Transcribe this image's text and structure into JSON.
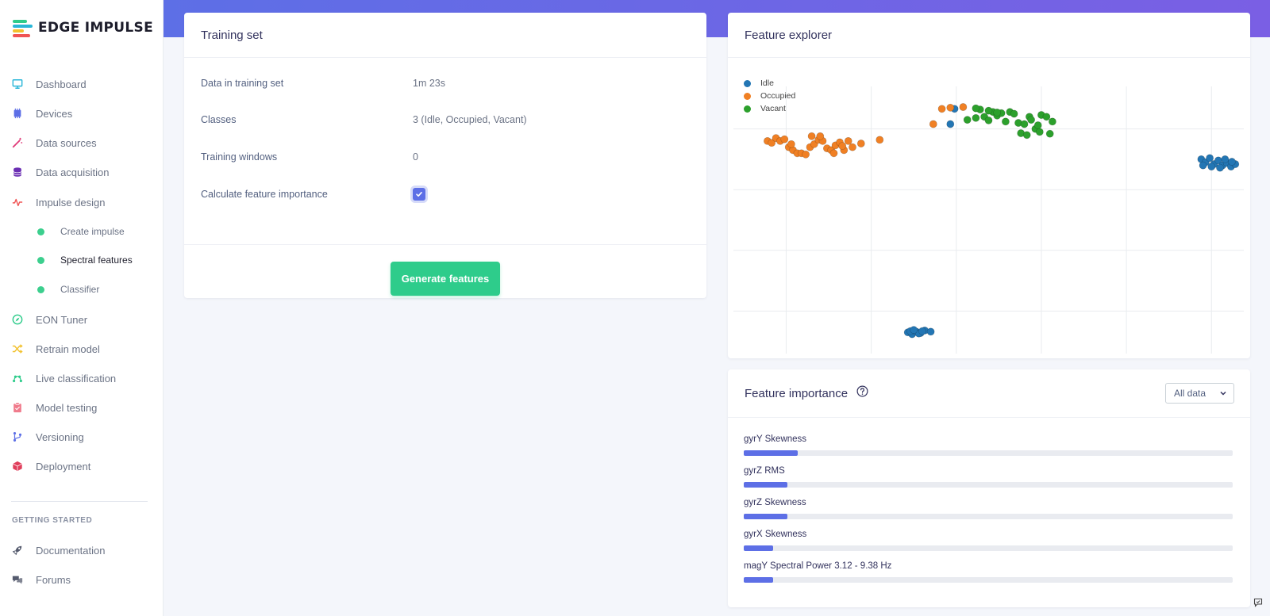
{
  "brand": {
    "name": "EDGE IMPULSE"
  },
  "sidebar": {
    "items": [
      {
        "label": "Dashboard",
        "icon": "monitor-icon",
        "color": "#29b6d8"
      },
      {
        "label": "Devices",
        "icon": "cpu-icon",
        "color": "#5d6fe6"
      },
      {
        "label": "Data sources",
        "icon": "wand-icon",
        "color": "#e03e7b"
      },
      {
        "label": "Data acquisition",
        "icon": "database-icon",
        "color": "#6b2fb3"
      },
      {
        "label": "Impulse design",
        "icon": "pulse-icon",
        "color": "#f05454"
      },
      {
        "label": "Create impulse",
        "icon": "dot-icon",
        "sub": true
      },
      {
        "label": "Spectral features",
        "icon": "dot-icon",
        "sub": true,
        "active": true
      },
      {
        "label": "Classifier",
        "icon": "dot-icon",
        "sub": true
      },
      {
        "label": "EON Tuner",
        "icon": "compass-icon",
        "color": "#2ecc8b"
      },
      {
        "label": "Retrain model",
        "icon": "shuffle-icon",
        "color": "#f2c12e"
      },
      {
        "label": "Live classification",
        "icon": "graph-icon",
        "color": "#2ecc8b"
      },
      {
        "label": "Model testing",
        "icon": "clipboard-icon",
        "color": "#f07b8c"
      },
      {
        "label": "Versioning",
        "icon": "branch-icon",
        "color": "#5d6fe6"
      },
      {
        "label": "Deployment",
        "icon": "cube-icon",
        "color": "#e03e5b"
      }
    ],
    "section_title": "GETTING STARTED",
    "getting_started": [
      {
        "label": "Documentation",
        "icon": "rocket-icon"
      },
      {
        "label": "Forums",
        "icon": "comments-icon"
      }
    ]
  },
  "training_set": {
    "title": "Training set",
    "rows": [
      {
        "label": "Data in training set",
        "value": "1m 23s"
      },
      {
        "label": "Classes",
        "value": "3 (Idle, Occupied, Vacant)"
      },
      {
        "label": "Training windows",
        "value": "0"
      },
      {
        "label": "Calculate feature importance",
        "checked": true
      }
    ],
    "button": "Generate features"
  },
  "feature_explorer": {
    "title": "Feature explorer",
    "legend": [
      {
        "name": "Idle",
        "color": "#2376b4"
      },
      {
        "name": "Occupied",
        "color": "#f08024"
      },
      {
        "name": "Vacant",
        "color": "#2ca02c"
      }
    ],
    "chart_data": {
      "type": "scatter",
      "grid": true,
      "xlim": [
        0,
        6
      ],
      "ylim": [
        0,
        4.4
      ],
      "series": [
        {
          "name": "Idle",
          "points": [
            [
              2.05,
              0.35
            ],
            [
              2.1,
              0.32
            ],
            [
              2.15,
              0.36
            ],
            [
              2.2,
              0.34
            ],
            [
              2.25,
              0.38
            ],
            [
              2.08,
              0.37
            ],
            [
              2.18,
              0.33
            ],
            [
              2.32,
              0.36
            ],
            [
              2.12,
              0.39
            ],
            [
              2.22,
              0.37
            ],
            [
              5.5,
              3.2
            ],
            [
              5.55,
              3.15
            ],
            [
              5.6,
              3.22
            ],
            [
              5.65,
              3.12
            ],
            [
              5.7,
              3.18
            ],
            [
              5.75,
              3.1
            ],
            [
              5.8,
              3.14
            ],
            [
              5.85,
              3.08
            ],
            [
              5.9,
              3.12
            ],
            [
              5.62,
              3.08
            ],
            [
              5.72,
              3.06
            ],
            [
              5.78,
              3.2
            ],
            [
              5.52,
              3.1
            ],
            [
              5.86,
              3.16
            ],
            [
              2.6,
              4.03
            ],
            [
              2.55,
              3.78
            ]
          ]
        },
        {
          "name": "Occupied",
          "points": [
            [
              0.4,
              3.5
            ],
            [
              0.45,
              3.47
            ],
            [
              0.5,
              3.55
            ],
            [
              0.55,
              3.5
            ],
            [
              0.6,
              3.53
            ],
            [
              0.65,
              3.4
            ],
            [
              0.7,
              3.35
            ],
            [
              0.75,
              3.3
            ],
            [
              0.8,
              3.3
            ],
            [
              0.85,
              3.28
            ],
            [
              0.9,
              3.4
            ],
            [
              0.95,
              3.45
            ],
            [
              1.0,
              3.52
            ],
            [
              1.05,
              3.5
            ],
            [
              1.1,
              3.38
            ],
            [
              1.15,
              3.35
            ],
            [
              1.2,
              3.43
            ],
            [
              1.25,
              3.48
            ],
            [
              1.3,
              3.35
            ],
            [
              1.35,
              3.5
            ],
            [
              1.4,
              3.4
            ],
            [
              1.5,
              3.46
            ],
            [
              0.92,
              3.58
            ],
            [
              1.02,
              3.58
            ],
            [
              0.68,
              3.45
            ],
            [
              1.18,
              3.3
            ],
            [
              1.28,
              3.42
            ],
            [
              1.72,
              3.52
            ],
            [
              2.35,
              3.78
            ],
            [
              2.45,
              4.03
            ],
            [
              2.55,
              4.05
            ],
            [
              2.7,
              4.06
            ]
          ]
        },
        {
          "name": "Vacant",
          "points": [
            [
              2.75,
              3.85
            ],
            [
              2.85,
              3.88
            ],
            [
              2.9,
              4.02
            ],
            [
              2.95,
              3.9
            ],
            [
              3.0,
              3.84
            ],
            [
              3.05,
              3.98
            ],
            [
              3.1,
              3.92
            ],
            [
              3.15,
              3.96
            ],
            [
              3.2,
              3.82
            ],
            [
              3.25,
              3.98
            ],
            [
              3.3,
              3.95
            ],
            [
              3.35,
              3.8
            ],
            [
              3.38,
              3.63
            ],
            [
              3.42,
              3.78
            ],
            [
              3.45,
              3.6
            ],
            [
              3.48,
              3.9
            ],
            [
              3.5,
              3.85
            ],
            [
              3.55,
              3.7
            ],
            [
              3.6,
              3.65
            ],
            [
              3.62,
              3.93
            ],
            [
              3.68,
              3.9
            ],
            [
              3.72,
              3.62
            ],
            [
              3.75,
              3.82
            ],
            [
              2.85,
              4.04
            ],
            [
              3.0,
              4.0
            ],
            [
              3.58,
              3.76
            ],
            [
              3.1,
              3.97
            ]
          ]
        }
      ]
    }
  },
  "feature_importance": {
    "title": "Feature importance",
    "select_value": "All data",
    "chart_data": {
      "type": "bar",
      "categories": [
        "gyrY Skewness",
        "gyrZ RMS",
        "gyrZ Skewness",
        "gyrX Skewness",
        "magY Spectral Power 3.12 - 9.38 Hz"
      ],
      "values": [
        0.11,
        0.09,
        0.09,
        0.06,
        0.06
      ],
      "xlim": [
        0,
        1
      ]
    }
  }
}
